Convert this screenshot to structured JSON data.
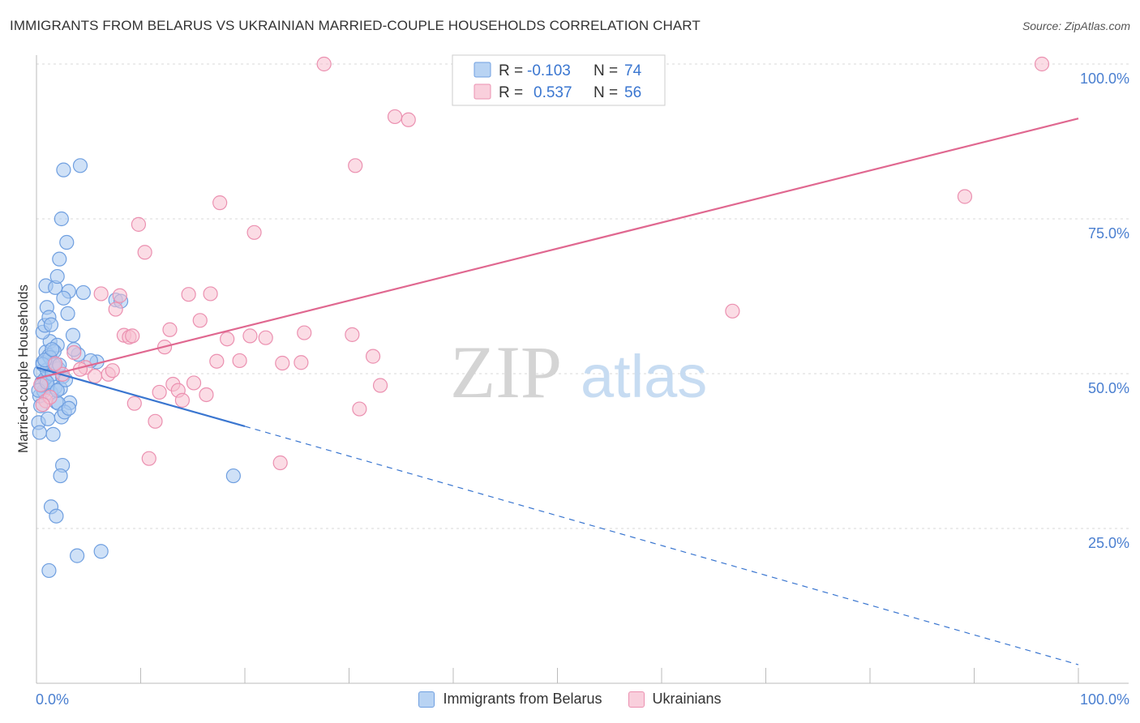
{
  "title": "IMMIGRANTS FROM BELARUS VS UKRAINIAN MARRIED-COUPLE HOUSEHOLDS CORRELATION CHART",
  "source": "Source: ZipAtlas.com",
  "watermark": {
    "zip": "ZIP",
    "atlas": "atlas"
  },
  "colors": {
    "blue_fill": "#a8c8f0",
    "blue_stroke": "#6f9fe0",
    "blue_line": "#3a76d0",
    "pink_fill": "#f7bfd0",
    "pink_stroke": "#eb90b0",
    "pink_line": "#e06890",
    "tick_label": "#4a7fd0",
    "grid": "#d8d8d8"
  },
  "legend_stats": [
    {
      "r_label": "R =",
      "r_value": "-0.103",
      "n_label": "N =",
      "n_value": "74"
    },
    {
      "r_label": "R =",
      "r_value": "0.537",
      "n_label": "N =",
      "n_value": "56"
    }
  ],
  "chart_data": {
    "type": "scatter",
    "title": "IMMIGRANTS FROM BELARUS VS UKRAINIAN MARRIED-COUPLE HOUSEHOLDS CORRELATION CHART",
    "xlabel": "",
    "ylabel": "Married-couple Households",
    "xlim": [
      0,
      100
    ],
    "ylim": [
      0,
      103
    ],
    "x_tick_labels": [
      "0.0%",
      "100.0%"
    ],
    "y_ticks": [
      {
        "value": 25,
        "label": "25.0%"
      },
      {
        "value": 50,
        "label": "50.0%"
      },
      {
        "value": 75,
        "label": "75.0%"
      },
      {
        "value": 100,
        "label": "100.0%"
      }
    ],
    "grid": true,
    "legend_position": "top-center",
    "series": [
      {
        "name": "Immigrants from Belarus",
        "color": "blue",
        "points": [
          [
            0.4,
            50.3
          ],
          [
            0.5,
            48.6
          ],
          [
            0.3,
            46.4
          ],
          [
            0.6,
            51.8
          ],
          [
            0.8,
            49.1
          ],
          [
            0.9,
            53.5
          ],
          [
            0.4,
            44.8
          ],
          [
            0.7,
            47.2
          ],
          [
            1.0,
            50.6
          ],
          [
            1.2,
            52.9
          ],
          [
            1.1,
            48.0
          ],
          [
            1.3,
            55.2
          ],
          [
            1.4,
            46.9
          ],
          [
            0.6,
            56.7
          ],
          [
            0.8,
            57.8
          ],
          [
            1.5,
            49.9
          ],
          [
            1.6,
            51.6
          ],
          [
            1.8,
            47.8
          ],
          [
            2.0,
            54.6
          ],
          [
            0.2,
            42.1
          ],
          [
            0.3,
            40.5
          ],
          [
            1.1,
            42.7
          ],
          [
            1.6,
            40.2
          ],
          [
            2.4,
            43.0
          ],
          [
            1.0,
            60.7
          ],
          [
            1.2,
            59.1
          ],
          [
            0.9,
            64.2
          ],
          [
            1.8,
            63.9
          ],
          [
            2.0,
            65.7
          ],
          [
            2.2,
            68.5
          ],
          [
            2.9,
            71.2
          ],
          [
            3.0,
            59.7
          ],
          [
            2.4,
            75.0
          ],
          [
            3.1,
            63.3
          ],
          [
            3.5,
            56.2
          ],
          [
            2.6,
            62.2
          ],
          [
            1.4,
            57.9
          ],
          [
            1.7,
            53.6
          ],
          [
            2.1,
            50.8
          ],
          [
            1.9,
            45.4
          ],
          [
            1.3,
            52.6
          ],
          [
            0.5,
            48.1
          ],
          [
            2.5,
            49.5
          ],
          [
            3.2,
            45.3
          ],
          [
            2.3,
            47.6
          ],
          [
            4.0,
            53.1
          ],
          [
            5.8,
            51.9
          ],
          [
            7.6,
            61.9
          ],
          [
            8.1,
            61.7
          ],
          [
            2.6,
            82.9
          ],
          [
            4.2,
            83.6
          ],
          [
            2.1,
            45.2
          ],
          [
            2.7,
            43.8
          ],
          [
            3.1,
            44.4
          ],
          [
            1.7,
            51.4
          ],
          [
            2.2,
            51.4
          ],
          [
            2.5,
            35.2
          ],
          [
            2.3,
            33.5
          ],
          [
            1.4,
            28.5
          ],
          [
            1.9,
            27.0
          ],
          [
            3.9,
            20.6
          ],
          [
            6.2,
            21.3
          ],
          [
            1.2,
            18.2
          ],
          [
            18.9,
            33.5
          ],
          [
            0.2,
            47.3
          ],
          [
            0.6,
            51.5
          ],
          [
            1.0,
            48.6
          ],
          [
            0.8,
            52.2
          ],
          [
            1.5,
            53.9
          ],
          [
            2.0,
            47.3
          ],
          [
            2.8,
            49.0
          ],
          [
            3.6,
            53.9
          ],
          [
            5.2,
            52.1
          ],
          [
            4.5,
            63.1
          ]
        ]
      },
      {
        "name": "Ukrainians",
        "color": "pink",
        "points": [
          [
            0.4,
            48.2
          ],
          [
            0.9,
            45.6
          ],
          [
            1.3,
            46.2
          ],
          [
            2.5,
            49.9
          ],
          [
            3.6,
            53.4
          ],
          [
            4.7,
            51.0
          ],
          [
            5.6,
            49.6
          ],
          [
            6.2,
            62.9
          ],
          [
            6.9,
            49.9
          ],
          [
            7.3,
            50.5
          ],
          [
            7.6,
            60.4
          ],
          [
            8.0,
            62.6
          ],
          [
            8.4,
            56.2
          ],
          [
            8.9,
            55.9
          ],
          [
            9.4,
            45.2
          ],
          [
            9.8,
            74.1
          ],
          [
            10.4,
            69.6
          ],
          [
            10.8,
            36.3
          ],
          [
            11.4,
            42.3
          ],
          [
            11.8,
            47.0
          ],
          [
            12.3,
            54.3
          ],
          [
            12.8,
            57.1
          ],
          [
            13.1,
            48.3
          ],
          [
            13.6,
            47.3
          ],
          [
            14.0,
            45.7
          ],
          [
            14.6,
            62.8
          ],
          [
            15.1,
            48.5
          ],
          [
            15.7,
            58.6
          ],
          [
            16.3,
            46.6
          ],
          [
            16.7,
            62.9
          ],
          [
            17.3,
            52.0
          ],
          [
            17.6,
            77.6
          ],
          [
            18.3,
            55.6
          ],
          [
            19.5,
            52.1
          ],
          [
            20.5,
            56.1
          ],
          [
            20.9,
            72.8
          ],
          [
            22.0,
            55.8
          ],
          [
            23.4,
            35.6
          ],
          [
            23.6,
            51.7
          ],
          [
            25.4,
            51.8
          ],
          [
            25.7,
            56.6
          ],
          [
            27.6,
            100.0
          ],
          [
            30.3,
            56.3
          ],
          [
            30.6,
            83.6
          ],
          [
            31.0,
            44.3
          ],
          [
            32.3,
            52.8
          ],
          [
            33.0,
            48.1
          ],
          [
            34.4,
            91.5
          ],
          [
            35.7,
            91.0
          ],
          [
            66.8,
            60.1
          ],
          [
            89.1,
            78.6
          ],
          [
            96.5,
            100.0
          ],
          [
            0.6,
            45.0
          ],
          [
            1.8,
            51.6
          ],
          [
            4.2,
            50.7
          ],
          [
            9.2,
            56.1
          ]
        ]
      }
    ],
    "trendlines": [
      {
        "series": "Immigrants from Belarus",
        "x0": 0,
        "y0": 51.0,
        "x1": 20,
        "y1": 41.5,
        "dashed_to_x": 100,
        "dashed_to_y": 3.0
      },
      {
        "series": "Ukrainians",
        "x0": 0,
        "y0": 49.2,
        "x1": 100,
        "y1": 91.2
      }
    ]
  }
}
